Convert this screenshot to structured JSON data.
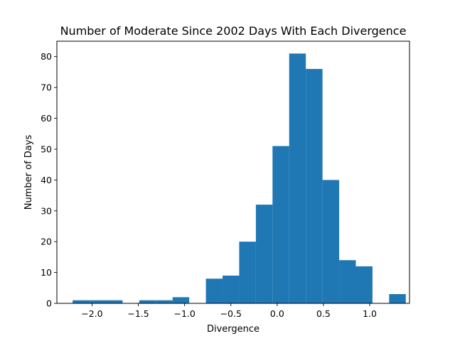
{
  "chart_data": {
    "type": "bar",
    "title": "Number of Moderate Since 2002 Days With Each Divergence",
    "xlabel": "Divergence",
    "ylabel": "Number of Days",
    "xlim": [
      -2.38,
      1.43
    ],
    "ylim": [
      0,
      85
    ],
    "xticks": [
      -2.0,
      -1.5,
      -1.0,
      -0.5,
      0.0,
      0.5,
      1.0
    ],
    "xtick_labels": [
      "−2.0",
      "−1.5",
      "−1.0",
      "−0.5",
      "0.0",
      "0.5",
      "1.0"
    ],
    "yticks": [
      0,
      10,
      20,
      30,
      40,
      50,
      60,
      70,
      80
    ],
    "ytick_labels": [
      "0",
      "10",
      "20",
      "30",
      "40",
      "50",
      "60",
      "70",
      "80"
    ],
    "grid": false,
    "bar_color": "#1f77b4",
    "bins": [
      {
        "x0": -2.21,
        "x1": -2.03,
        "count": 1
      },
      {
        "x0": -2.03,
        "x1": -1.85,
        "count": 1
      },
      {
        "x0": -1.85,
        "x1": -1.67,
        "count": 1
      },
      {
        "x0": -1.67,
        "x1": -1.49,
        "count": 0
      },
      {
        "x0": -1.49,
        "x1": -1.31,
        "count": 1
      },
      {
        "x0": -1.31,
        "x1": -1.13,
        "count": 1
      },
      {
        "x0": -1.13,
        "x1": -0.95,
        "count": 2
      },
      {
        "x0": -0.95,
        "x1": -0.77,
        "count": 0
      },
      {
        "x0": -0.77,
        "x1": -0.59,
        "count": 8
      },
      {
        "x0": -0.59,
        "x1": -0.41,
        "count": 9
      },
      {
        "x0": -0.41,
        "x1": -0.23,
        "count": 20
      },
      {
        "x0": -0.23,
        "x1": -0.05,
        "count": 32
      },
      {
        "x0": -0.05,
        "x1": 0.13,
        "count": 51
      },
      {
        "x0": 0.13,
        "x1": 0.31,
        "count": 81
      },
      {
        "x0": 0.31,
        "x1": 0.49,
        "count": 76
      },
      {
        "x0": 0.49,
        "x1": 0.67,
        "count": 40
      },
      {
        "x0": 0.67,
        "x1": 0.85,
        "count": 14
      },
      {
        "x0": 0.85,
        "x1": 1.03,
        "count": 12
      },
      {
        "x0": 1.03,
        "x1": 1.21,
        "count": 0
      },
      {
        "x0": 1.21,
        "x1": 1.39,
        "count": 3
      }
    ]
  }
}
